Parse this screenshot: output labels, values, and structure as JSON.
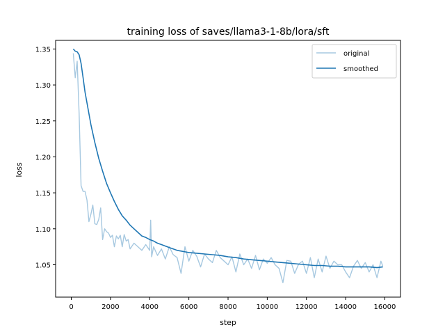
{
  "chart_data": {
    "type": "line",
    "title": "training loss of saves/llama3-1-8b/lora/sft",
    "xlabel": "step",
    "ylabel": "loss",
    "xlim": [
      -800,
      16800
    ],
    "ylim": [
      1.005,
      1.362
    ],
    "xticks": [
      0,
      2000,
      4000,
      6000,
      8000,
      10000,
      12000,
      14000,
      16000
    ],
    "xtick_labels": [
      "0",
      "2000",
      "4000",
      "6000",
      "8000",
      "10000",
      "12000",
      "14000",
      "16000"
    ],
    "yticks": [
      1.05,
      1.1,
      1.15,
      1.2,
      1.25,
      1.3,
      1.35
    ],
    "ytick_labels": [
      "1.05",
      "1.10",
      "1.15",
      "1.20",
      "1.25",
      "1.30",
      "1.35"
    ],
    "grid": false,
    "legend_position": "top-right",
    "series": [
      {
        "name": "original",
        "color": "#a6c8e0",
        "x": [
          100,
          200,
          300,
          400,
          500,
          600,
          700,
          800,
          900,
          1000,
          1100,
          1200,
          1300,
          1400,
          1500,
          1600,
          1700,
          1800,
          1900,
          2000,
          2100,
          2200,
          2300,
          2400,
          2500,
          2600,
          2700,
          2800,
          2900,
          3000,
          3200,
          3400,
          3600,
          3800,
          4000,
          4050,
          4100,
          4200,
          4400,
          4600,
          4800,
          5000,
          5200,
          5400,
          5600,
          5800,
          6000,
          6200,
          6400,
          6600,
          6800,
          7000,
          7200,
          7400,
          7600,
          7800,
          8000,
          8200,
          8400,
          8600,
          8800,
          9000,
          9200,
          9400,
          9600,
          9800,
          10000,
          10200,
          10400,
          10600,
          10800,
          11000,
          11200,
          11400,
          11600,
          11800,
          12000,
          12200,
          12400,
          12600,
          12800,
          13000,
          13200,
          13400,
          13600,
          13800,
          14000,
          14200,
          14400,
          14600,
          14800,
          15000,
          15200,
          15400,
          15600,
          15800,
          15900
        ],
        "y": [
          1.344,
          1.31,
          1.333,
          1.26,
          1.16,
          1.152,
          1.152,
          1.14,
          1.11,
          1.12,
          1.133,
          1.107,
          1.106,
          1.113,
          1.129,
          1.085,
          1.1,
          1.096,
          1.094,
          1.088,
          1.091,
          1.075,
          1.09,
          1.086,
          1.091,
          1.075,
          1.092,
          1.083,
          1.085,
          1.072,
          1.08,
          1.075,
          1.07,
          1.078,
          1.07,
          1.112,
          1.061,
          1.075,
          1.063,
          1.072,
          1.058,
          1.075,
          1.064,
          1.06,
          1.038,
          1.075,
          1.055,
          1.07,
          1.062,
          1.047,
          1.065,
          1.058,
          1.053,
          1.07,
          1.06,
          1.055,
          1.05,
          1.061,
          1.04,
          1.065,
          1.05,
          1.058,
          1.045,
          1.063,
          1.043,
          1.058,
          1.052,
          1.06,
          1.05,
          1.045,
          1.025,
          1.056,
          1.055,
          1.038,
          1.051,
          1.055,
          1.038,
          1.06,
          1.032,
          1.058,
          1.04,
          1.062,
          1.045,
          1.055,
          1.05,
          1.05,
          1.04,
          1.032,
          1.048,
          1.056,
          1.045,
          1.053,
          1.04,
          1.05,
          1.032,
          1.055,
          1.048
        ]
      },
      {
        "name": "smoothed",
        "color": "#1f77b4",
        "x": [
          100,
          200,
          300,
          400,
          500,
          600,
          700,
          800,
          900,
          1000,
          1200,
          1400,
          1600,
          1800,
          2000,
          2200,
          2400,
          2600,
          2800,
          3000,
          3200,
          3400,
          3600,
          3800,
          4000,
          4200,
          4400,
          4600,
          4800,
          5000,
          5200,
          5400,
          5600,
          5800,
          6000,
          6400,
          6800,
          7200,
          7600,
          8000,
          8400,
          8800,
          9200,
          9600,
          10000,
          10400,
          10800,
          11200,
          11600,
          12000,
          12400,
          12800,
          13200,
          13600,
          14000,
          14400,
          14800,
          15200,
          15600,
          15900
        ],
        "y": [
          1.35,
          1.347,
          1.346,
          1.342,
          1.33,
          1.31,
          1.29,
          1.275,
          1.26,
          1.245,
          1.22,
          1.198,
          1.18,
          1.163,
          1.15,
          1.138,
          1.127,
          1.118,
          1.112,
          1.105,
          1.1,
          1.095,
          1.09,
          1.088,
          1.085,
          1.083,
          1.08,
          1.078,
          1.076,
          1.074,
          1.072,
          1.07,
          1.069,
          1.068,
          1.067,
          1.066,
          1.065,
          1.064,
          1.063,
          1.061,
          1.06,
          1.058,
          1.057,
          1.056,
          1.055,
          1.054,
          1.053,
          1.052,
          1.051,
          1.05,
          1.049,
          1.049,
          1.048,
          1.048,
          1.047,
          1.047,
          1.047,
          1.047,
          1.046,
          1.047
        ]
      }
    ]
  }
}
